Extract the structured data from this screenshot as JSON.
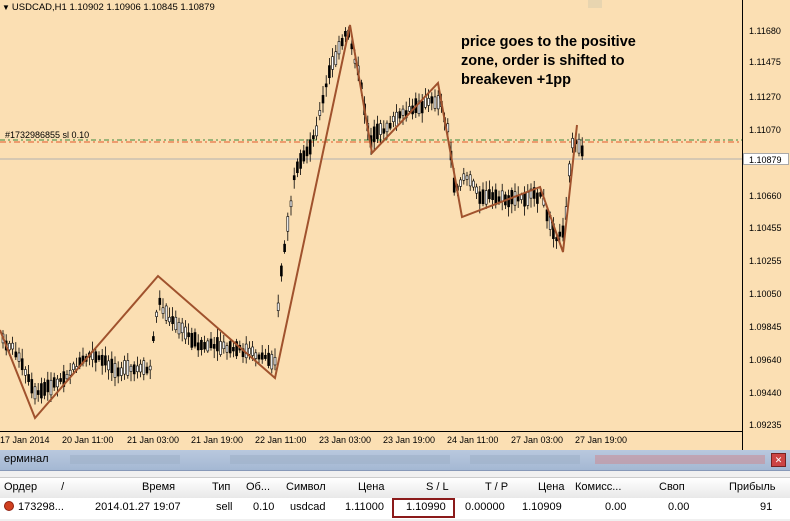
{
  "chart": {
    "symbol_info": "USDCAD,H1  1.10902 1.10906 1.10845 1.10879",
    "annotation_line1": "price goes to the positive",
    "annotation_line2": "zone, order is shifted to",
    "annotation_line3": "breakeven +1pp",
    "order_label": "#1732986855 sl 0.10",
    "current_price": "1.10879",
    "price_ticks": [
      "1.11680",
      "1.11475",
      "1.11270",
      "1.11070",
      "1.10660",
      "1.10455",
      "1.10255",
      "1.10050",
      "1.09845",
      "1.09640",
      "1.09440",
      "1.09235"
    ],
    "time_ticks": [
      "17 Jan 2014",
      "20 Jan 11:00",
      "21 Jan 03:00",
      "21 Jan 19:00",
      "22 Jan 11:00",
      "23 Jan 03:00",
      "23 Jan 19:00",
      "24 Jan 11:00",
      "27 Jan 03:00",
      "27 Jan 19:00"
    ],
    "colors": {
      "background": "#fbdfb3",
      "zigzag": "#a0522d",
      "sl_line": "#e05a2a",
      "order_line": "#3c8a3c",
      "price_line": "#b0b0b0"
    }
  },
  "terminal": {
    "title": "ерминал",
    "close_icon": "close-icon",
    "columns": {
      "order": "Ордер",
      "order_sort": "/",
      "time": "Время",
      "type": "Тип",
      "volume": "Об...",
      "symbol": "Символ",
      "price": "Цена",
      "sl": "S / L",
      "tp": "T / P",
      "price2": "Цена",
      "commission": "Комисс...",
      "swap": "Своп",
      "profit": "Прибыль"
    },
    "row": {
      "order": "173298...",
      "time": "2014.01.27 19:07",
      "type": "sell",
      "volume": "0.10",
      "symbol": "usdcad",
      "price": "1.11000",
      "sl": "1.10990",
      "tp": "0.00000",
      "price2": "1.10909",
      "commission": "0.00",
      "swap": "0.00",
      "profit": "91"
    }
  }
}
